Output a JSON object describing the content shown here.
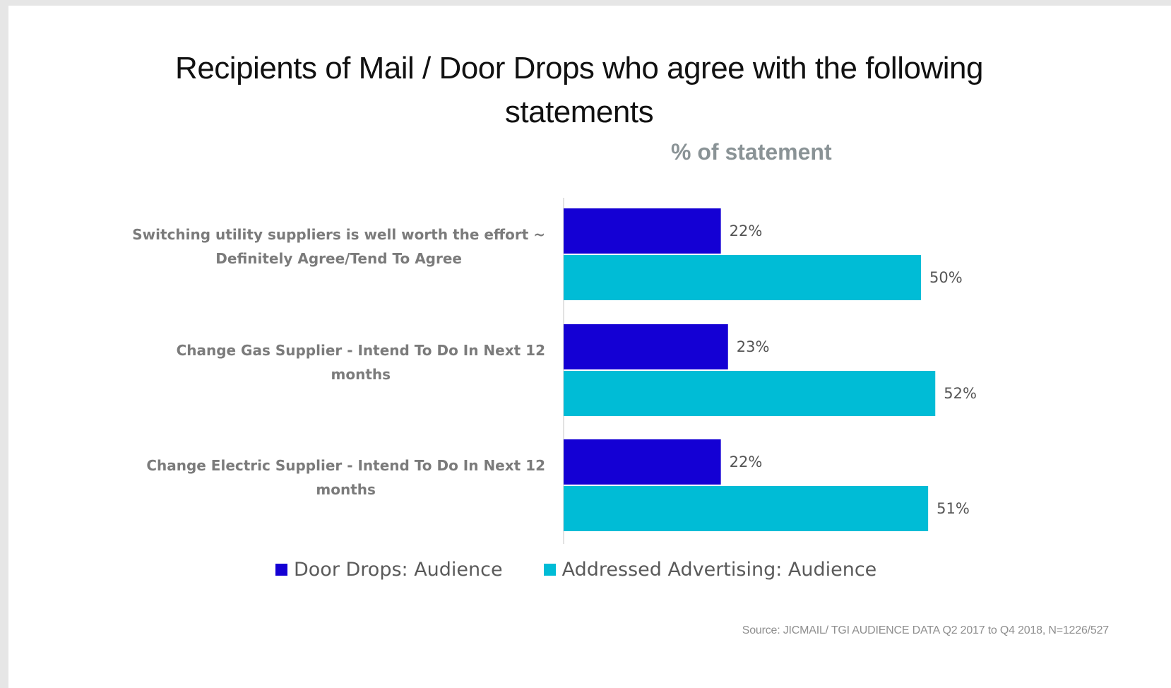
{
  "chart_data": {
    "type": "bar",
    "orientation": "horizontal",
    "title": "Recipients of Mail / Door Drops who agree with the following statements",
    "subtitle": "% of statement",
    "categories": [
      [
        "Switching utility suppliers is well worth the effort ~",
        "Definitely Agree/Tend To Agree"
      ],
      [
        "Change Gas Supplier  - Intend To Do In Next 12",
        "months"
      ],
      [
        "Change Electric Supplier  - Intend To Do In Next 12",
        "months"
      ]
    ],
    "series": [
      {
        "name": "Door Drops: Audience",
        "color": "#1400d4",
        "values": [
          22,
          23,
          22
        ],
        "labels": [
          "22%",
          "23%",
          "22%"
        ]
      },
      {
        "name": "Addressed Advertising: Audience",
        "color": "#00bcd6",
        "values": [
          50,
          52,
          51
        ],
        "labels": [
          "50%",
          "52%",
          "51%"
        ]
      }
    ],
    "xlim": [
      0,
      100
    ],
    "grid": false,
    "legend": "bottom"
  },
  "source": "Source:  JICMAIL/  TGI AUDIENCE  DATA Q2 2017 to Q4 2018,  N=1226/527"
}
